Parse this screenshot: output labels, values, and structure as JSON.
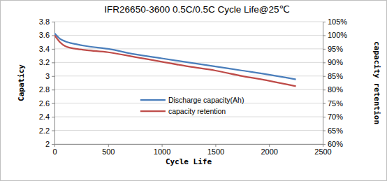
{
  "chart_data": {
    "type": "line",
    "title": "IFR26650-3600 0.5C/0.5C Cycle Life@25℃",
    "x_label": "Cycle Life",
    "y_label": "Capaticy",
    "y2_label": "capacity retention",
    "x": [
      0,
      50,
      100,
      200,
      300,
      500,
      750,
      1000,
      1250,
      1500,
      1750,
      2000,
      2250
    ],
    "series": [
      {
        "name": "Discharge capacity(Ah)",
        "color": "#4a7ebb",
        "values": [
          3.63,
          3.55,
          3.51,
          3.47,
          3.44,
          3.4,
          3.32,
          3.26,
          3.2,
          3.14,
          3.08,
          3.02,
          2.95
        ]
      },
      {
        "name": "capacity retention",
        "color": "#be4b48",
        "axis": "y2",
        "values": [
          100,
          97.5,
          96,
          95,
          94.5,
          93.75,
          92,
          90.25,
          88.5,
          87,
          85,
          83.25,
          81.25
        ]
      }
    ],
    "xlim": [
      0,
      2500
    ],
    "xticks": [
      0,
      500,
      1000,
      1500,
      2000,
      2500
    ],
    "ylim": [
      2,
      3.8
    ],
    "yticks": [
      2,
      2.2,
      2.4,
      2.6,
      2.8,
      3,
      3.2,
      3.4,
      3.6,
      3.8
    ],
    "y2lim": [
      60,
      105
    ],
    "y2ticks": [
      {
        "value": 60,
        "label": "60%"
      },
      {
        "value": 65,
        "label": "65%"
      },
      {
        "value": 70,
        "label": "70%"
      },
      {
        "value": 75,
        "label": "75%"
      },
      {
        "value": 80,
        "label": "80%"
      },
      {
        "value": 85,
        "label": "85%"
      },
      {
        "value": 90,
        "label": "90%"
      },
      {
        "value": 95,
        "label": "95%"
      },
      {
        "value": 100,
        "label": "100%"
      },
      {
        "value": 105,
        "label": "105%"
      }
    ],
    "grid": true,
    "legend": "center"
  }
}
